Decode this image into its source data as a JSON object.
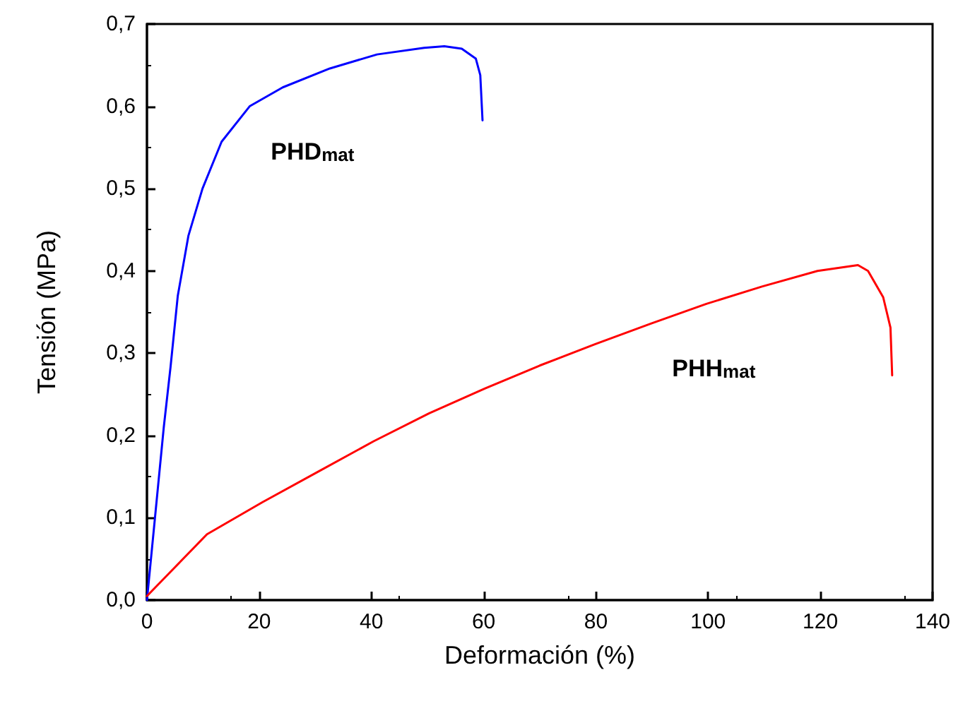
{
  "chart_data": {
    "type": "line",
    "xlabel": "Deformación (%)",
    "ylabel": "Tensión (MPa)",
    "xlim": [
      0,
      140
    ],
    "xticks": [
      0,
      20,
      40,
      60,
      80,
      100,
      120,
      140
    ],
    "ylim": [
      0,
      0.7
    ],
    "yticks": [
      {
        "value": 0,
        "label": "0,0"
      },
      {
        "value": 0.1,
        "label": "0,1"
      },
      {
        "value": 0.2,
        "label": "0,2"
      },
      {
        "value": 0.3,
        "label": "0,3"
      },
      {
        "value": 0.4,
        "label": "0,4"
      },
      {
        "value": 0.5,
        "label": "0,5"
      },
      {
        "value": 0.6,
        "label": "0,6"
      },
      {
        "value": 0.7,
        "label": "0,7"
      }
    ],
    "grid": false,
    "marker": "none",
    "line_style": "solid",
    "series": [
      {
        "name": "PHD$_{mat}$",
        "color": "#0000ff",
        "x": [
          0,
          1,
          2,
          3,
          4.2,
          5.5,
          7.4,
          9.9,
          13.3,
          18.3,
          24.2,
          32.6,
          41.0,
          49.4,
          53,
          56.1,
          58.6,
          59.4,
          59.8
        ],
        "values": [
          0,
          0.07,
          0.14,
          0.21,
          0.283,
          0.37,
          0.443,
          0.5,
          0.557,
          0.6,
          0.623,
          0.646,
          0.663,
          0.671,
          0.673,
          0.67,
          0.658,
          0.638,
          0.583
        ]
      },
      {
        "name": "PHH$_{mat}$",
        "color": "#ff0000",
        "x": [
          0,
          10.7,
          20.6,
          30.5,
          40.4,
          50.3,
          60.2,
          70.0,
          79.9,
          89.8,
          99.7,
          109.6,
          119.5,
          126.7,
          128.5,
          131.2,
          132.5,
          132.8
        ],
        "values": [
          0.005,
          0.08,
          0.119,
          0.156,
          0.193,
          0.227,
          0.257,
          0.285,
          0.311,
          0.336,
          0.36,
          0.381,
          0.4,
          0.407,
          0.4,
          0.368,
          0.331,
          0.273
        ]
      }
    ]
  }
}
